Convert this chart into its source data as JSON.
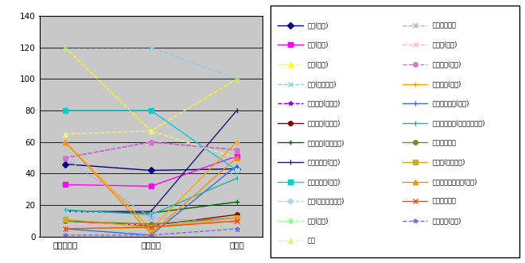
{
  "x_labels": [
    "アトランタ",
    "シドニー",
    "アテネ"
  ],
  "ylim": [
    0,
    140
  ],
  "yticks": [
    0,
    20,
    40,
    60,
    80,
    100,
    120,
    140
  ],
  "series": [
    {
      "label": "柔道(男子)",
      "color": "#00008B",
      "marker": "D",
      "linestyle": "-",
      "markersize": 4,
      "values": [
        46,
        42,
        43
      ]
    },
    {
      "label": "柔道(女子)",
      "color": "#FF00FF",
      "marker": "s",
      "linestyle": "-",
      "markersize": 4,
      "values": [
        33,
        32,
        51
      ]
    },
    {
      "label": "水泳(競泳)",
      "color": "#FFFF00",
      "marker": "^",
      "linestyle": "--",
      "markersize": 5,
      "values": [
        120,
        67,
        100
      ]
    },
    {
      "label": "水泳(シンクロ)",
      "color": "#87CEEB",
      "marker": "x",
      "linestyle": "--",
      "markersize": 4,
      "values": [
        120,
        120,
        100
      ]
    },
    {
      "label": "陸上競技(短距離)",
      "color": "#9400D3",
      "marker": "*",
      "linestyle": "--",
      "markersize": 5,
      "values": [
        50,
        60,
        55
      ]
    },
    {
      "label": "陸上競技(投てき)",
      "color": "#8B0000",
      "marker": "o",
      "linestyle": "-",
      "markersize": 4,
      "values": [
        10,
        7,
        14
      ]
    },
    {
      "label": "陸上競技(マラソン)",
      "color": "#006400",
      "marker": "+",
      "linestyle": "-",
      "markersize": 5,
      "values": [
        16,
        15,
        22
      ]
    },
    {
      "label": "レスリング(男子)",
      "color": "#191970",
      "marker": "|",
      "linestyle": "-",
      "markersize": 5,
      "values": [
        16,
        16,
        80
      ]
    },
    {
      "label": "レスリング(女子)",
      "color": "#00CED1",
      "marker": "s",
      "linestyle": "-",
      "markersize": 4,
      "values": [
        80,
        80,
        42
      ]
    },
    {
      "label": "体操(体操競技男子)",
      "color": "#ADD8E6",
      "marker": "o",
      "linestyle": "--",
      "markersize": 4,
      "values": [
        16,
        14,
        42
      ]
    },
    {
      "label": "卓球(女子)",
      "color": "#98FB98",
      "marker": "o",
      "linestyle": "--",
      "markersize": 4,
      "values": [
        5,
        5,
        7
      ]
    },
    {
      "label": "野球",
      "color": "#EEEE88",
      "marker": "^",
      "linestyle": "--",
      "markersize": 5,
      "values": [
        65,
        67,
        50
      ]
    },
    {
      "label": "ソフトボール",
      "color": "#AAAAFF",
      "marker": "x",
      "linestyle": "--",
      "markersize": 4,
      "values": [
        50,
        12,
        9
      ]
    },
    {
      "label": "ボート(男子)",
      "color": "#FFB6C1",
      "marker": "x",
      "linestyle": "--",
      "markersize": 4,
      "values": [
        8,
        8,
        8
      ]
    },
    {
      "label": "サッカー(男子)",
      "color": "#DA70D6",
      "marker": "o",
      "linestyle": "--",
      "markersize": 4,
      "values": [
        50,
        60,
        55
      ]
    },
    {
      "label": "サッカー(女子)",
      "color": "#FFA500",
      "marker": "+",
      "linestyle": "-",
      "markersize": 5,
      "values": [
        60,
        5,
        60
      ]
    },
    {
      "label": "バレーボール(女子)",
      "color": "#4169E1",
      "marker": "|",
      "linestyle": "-",
      "markersize": 5,
      "values": [
        5,
        1,
        45
      ]
    },
    {
      "label": "バレーボール(ビーチバレー)",
      "color": "#20B2AA",
      "marker": "|",
      "linestyle": "-",
      "markersize": 5,
      "values": [
        17,
        14,
        37
      ]
    },
    {
      "label": "バドミントン",
      "color": "#6B8E23",
      "marker": "o",
      "linestyle": "-",
      "markersize": 4,
      "values": [
        10,
        8,
        12
      ]
    },
    {
      "label": "自転車(トラック)",
      "color": "#DAA520",
      "marker": "s",
      "linestyle": "-",
      "markersize": 4,
      "values": [
        11,
        6,
        12
      ]
    },
    {
      "label": "バスケットボール(女子)",
      "color": "#FF8C00",
      "marker": "^",
      "linestyle": "-",
      "markersize": 5,
      "values": [
        60,
        2,
        50
      ]
    },
    {
      "label": "アーチェリー",
      "color": "#FF4500",
      "marker": "x",
      "linestyle": "-",
      "markersize": 4,
      "values": [
        5,
        6,
        10
      ]
    },
    {
      "label": "ホッケー(女子)",
      "color": "#7B68EE",
      "marker": "*",
      "linestyle": "--",
      "markersize": 5,
      "values": [
        1,
        1,
        5
      ]
    }
  ],
  "background_color": "#C0C0C0",
  "plot_bg": "#C8C8C8"
}
